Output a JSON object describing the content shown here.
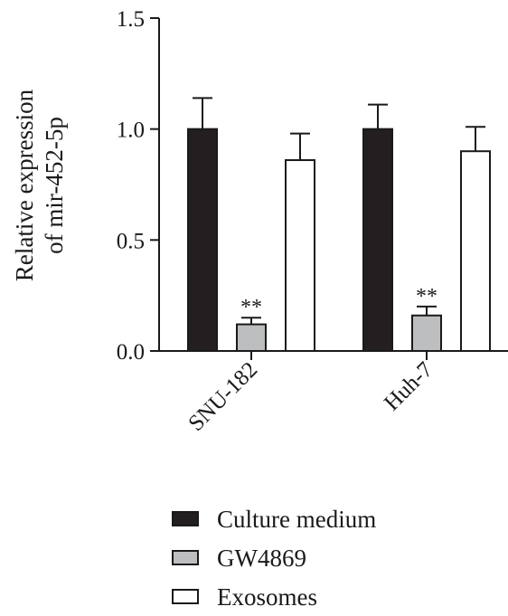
{
  "chart_data": {
    "type": "bar",
    "title": "",
    "xlabel": "",
    "ylabel_lines": [
      "Relative expression",
      "of mir-452-5p"
    ],
    "ylim": [
      0,
      1.5
    ],
    "yticks": [
      "0.0",
      "0.5",
      "1.0",
      "1.5"
    ],
    "categories": [
      "SNU-182",
      "Huh-7"
    ],
    "series": [
      {
        "name": "Culture medium",
        "color": "#231f20",
        "values": [
          1.0,
          1.0
        ],
        "errors": [
          0.14,
          0.11
        ],
        "annotations": [
          "",
          ""
        ]
      },
      {
        "name": "GW4869",
        "color": "#bcbec0",
        "values": [
          0.12,
          0.16
        ],
        "errors": [
          0.03,
          0.04
        ],
        "annotations": [
          "**",
          "**"
        ]
      },
      {
        "name": "Exosomes",
        "color": "#ffffff",
        "values": [
          0.86,
          0.9
        ],
        "errors": [
          0.12,
          0.11
        ],
        "annotations": [
          "",
          ""
        ]
      }
    ],
    "legend_position": "bottom",
    "grid": false
  }
}
